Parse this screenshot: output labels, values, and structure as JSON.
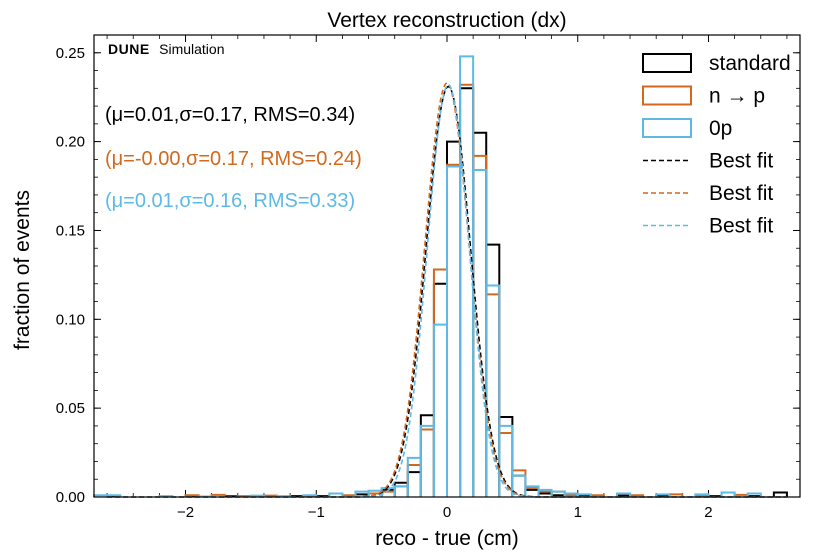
{
  "chart_data": {
    "type": "histogram",
    "title": "Vertex reconstruction (dx)",
    "xlabel": "reco - true (cm)",
    "ylabel": "fraction of events",
    "xlim": [
      -2.7,
      2.7
    ],
    "ylim": [
      0,
      0.26
    ],
    "xticks": [
      -2,
      -1,
      0,
      1,
      2
    ],
    "xtick_labels": [
      "−2",
      "−1",
      "0",
      "1",
      "2"
    ],
    "yticks": [
      0.0,
      0.05,
      0.1,
      0.15,
      0.2,
      0.25
    ],
    "ytick_labels": [
      "0.00",
      "0.05",
      "0.10",
      "0.15",
      "0.20",
      "0.25"
    ],
    "watermark_bold": "DUNE",
    "watermark": "Simulation",
    "bin_width": 0.1,
    "series": [
      {
        "name": "standard",
        "color": "#000000",
        "bins": [
          [
            -2.6,
            0.0005
          ],
          [
            -2.0,
            0.0005
          ],
          [
            -1.7,
            0.0004
          ],
          [
            -1.4,
            0.0005
          ],
          [
            -1.2,
            0.0005
          ],
          [
            -1.0,
            0.0005
          ],
          [
            -0.7,
            0.0015
          ],
          [
            -0.6,
            0.002
          ],
          [
            -0.5,
            0.004
          ],
          [
            -0.4,
            0.008
          ],
          [
            -0.3,
            0.014
          ],
          [
            -0.2,
            0.046
          ],
          [
            -0.1,
            0.12
          ],
          [
            0.0,
            0.2
          ],
          [
            0.1,
            0.23
          ],
          [
            0.2,
            0.205
          ],
          [
            0.3,
            0.142
          ],
          [
            0.4,
            0.045
          ],
          [
            0.5,
            0.012
          ],
          [
            0.6,
            0.004
          ],
          [
            0.7,
            0.002
          ],
          [
            0.8,
            0.001
          ],
          [
            1.0,
            0.001
          ],
          [
            1.3,
            0.0008
          ],
          [
            1.6,
            0.0005
          ],
          [
            2.0,
            0.0005
          ],
          [
            2.3,
            0.0005
          ],
          [
            2.5,
            0.0025
          ]
        ],
        "mu": 0.01,
        "sigma": 0.17,
        "rms": 0.34,
        "annotation": "(μ=0.01,σ=0.17, RMS=0.34)"
      },
      {
        "name": "n → p",
        "color": "#d2691e",
        "bins": [
          [
            -2.0,
            0.001
          ],
          [
            -1.8,
            0.0012
          ],
          [
            -1.6,
            0.0005
          ],
          [
            -1.4,
            0.0008
          ],
          [
            -1.1,
            0.0005
          ],
          [
            -0.8,
            0.001
          ],
          [
            -0.6,
            0.002
          ],
          [
            -0.5,
            0.003
          ],
          [
            -0.4,
            0.006
          ],
          [
            -0.3,
            0.018
          ],
          [
            -0.2,
            0.038
          ],
          [
            -0.1,
            0.128
          ],
          [
            0.0,
            0.187
          ],
          [
            0.1,
            0.232
          ],
          [
            0.2,
            0.192
          ],
          [
            0.3,
            0.114
          ],
          [
            0.4,
            0.036
          ],
          [
            0.5,
            0.015
          ],
          [
            0.6,
            0.005
          ],
          [
            0.7,
            0.003
          ],
          [
            0.8,
            0.003
          ],
          [
            0.9,
            0.001
          ],
          [
            1.1,
            0.001
          ],
          [
            1.4,
            0.001
          ],
          [
            1.7,
            0.0015
          ],
          [
            1.9,
            0.0005
          ],
          [
            2.2,
            0.0012
          ]
        ],
        "mu": -0.0,
        "sigma": 0.17,
        "rms": 0.24,
        "annotation": "(μ=-0.00,σ=0.17, RMS=0.24)"
      },
      {
        "name": "0p",
        "color": "#5dbae6",
        "bins": [
          [
            -2.7,
            0.001
          ],
          [
            -2.6,
            0.001
          ],
          [
            -2.2,
            0.0005
          ],
          [
            -1.9,
            0.0003
          ],
          [
            -1.5,
            0.0008
          ],
          [
            -1.3,
            0.0005
          ],
          [
            -1.1,
            0.001
          ],
          [
            -0.9,
            0.002
          ],
          [
            -0.7,
            0.003
          ],
          [
            -0.6,
            0.0035
          ],
          [
            -0.5,
            0.005
          ],
          [
            -0.4,
            0.006
          ],
          [
            -0.3,
            0.022
          ],
          [
            -0.2,
            0.04
          ],
          [
            -0.1,
            0.097
          ],
          [
            0.0,
            0.186
          ],
          [
            0.1,
            0.248
          ],
          [
            0.2,
            0.184
          ],
          [
            0.3,
            0.119
          ],
          [
            0.4,
            0.04
          ],
          [
            0.5,
            0.012
          ],
          [
            0.6,
            0.006
          ],
          [
            0.7,
            0.004
          ],
          [
            0.8,
            0.003
          ],
          [
            0.9,
            0.002
          ],
          [
            1.0,
            0.0015
          ],
          [
            1.3,
            0.002
          ],
          [
            1.6,
            0.0015
          ],
          [
            1.9,
            0.0015
          ],
          [
            2.1,
            0.0025
          ],
          [
            2.3,
            0.002
          ]
        ],
        "mu": 0.01,
        "sigma": 0.16,
        "rms": 0.33,
        "annotation": "(μ=0.01,σ=0.16, RMS=0.33)"
      }
    ],
    "fits": [
      {
        "name": "Best fit",
        "color": "#000000",
        "amplitude": 0.231,
        "mu": 0.01,
        "sigma": 0.17
      },
      {
        "name": "Best fit",
        "color": "#d2691e",
        "amplitude": 0.233,
        "mu": 0.0,
        "sigma": 0.17
      },
      {
        "name": "Best fit",
        "color": "#5dbae6",
        "amplitude": 0.232,
        "mu": 0.01,
        "sigma": 0.16
      }
    ],
    "legend_position": "top-right"
  }
}
